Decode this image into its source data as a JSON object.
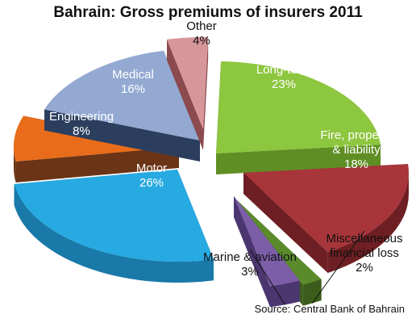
{
  "chart_data": {
    "type": "pie",
    "title": "Bahrain: Gross premiums of insurers 2011",
    "source": "Source: Central Bank of Bahrain",
    "slices": [
      {
        "name": "Long-term",
        "label_lines": [
          "Long-term"
        ],
        "pct_label": "23%",
        "value": 23,
        "color": "#8dc63f",
        "side_color": "#5f8f24",
        "label_color": "#ffffff"
      },
      {
        "name": "Fire, property & liability",
        "label_lines": [
          "Fire, property",
          "& liability"
        ],
        "pct_label": "18%",
        "value": 18,
        "color": "#a8353a",
        "side_color": "#6e1f23",
        "label_color": "#ffffff"
      },
      {
        "name": "Miscellaneous financial loss",
        "label_lines": [
          "Miscellaneous",
          "financial loss"
        ],
        "pct_label": "2%",
        "value": 2,
        "color": "#5a8a2a",
        "side_color": "#3b5c1a",
        "label_color": "#111111"
      },
      {
        "name": "Marine & aviation",
        "label_lines": [
          "Marine & aviation"
        ],
        "pct_label": "3%",
        "value": 3,
        "color": "#7b5ea7",
        "side_color": "#4c3670",
        "label_color": "#111111"
      },
      {
        "name": "Motor",
        "label_lines": [
          "Motor"
        ],
        "pct_label": "26%",
        "value": 26,
        "color": "#27a9e1",
        "side_color": "#1979a8",
        "label_color": "#ffffff"
      },
      {
        "name": "Engineering",
        "label_lines": [
          "Engineering"
        ],
        "pct_label": "8%",
        "value": 8,
        "color": "#e86c1a",
        "side_color": "#6b3416",
        "label_color": "#ffffff"
      },
      {
        "name": "Medical",
        "label_lines": [
          "Medical"
        ],
        "pct_label": "16%",
        "value": 16,
        "color": "#93a9d2",
        "side_color": "#2c3e5e",
        "label_color": "#ffffff"
      },
      {
        "name": "Other",
        "label_lines": [
          "Other"
        ],
        "pct_label": "4%",
        "value": 4,
        "color": "#d7969a",
        "side_color": "#8a4a4e",
        "label_color": "#111111"
      }
    ]
  }
}
